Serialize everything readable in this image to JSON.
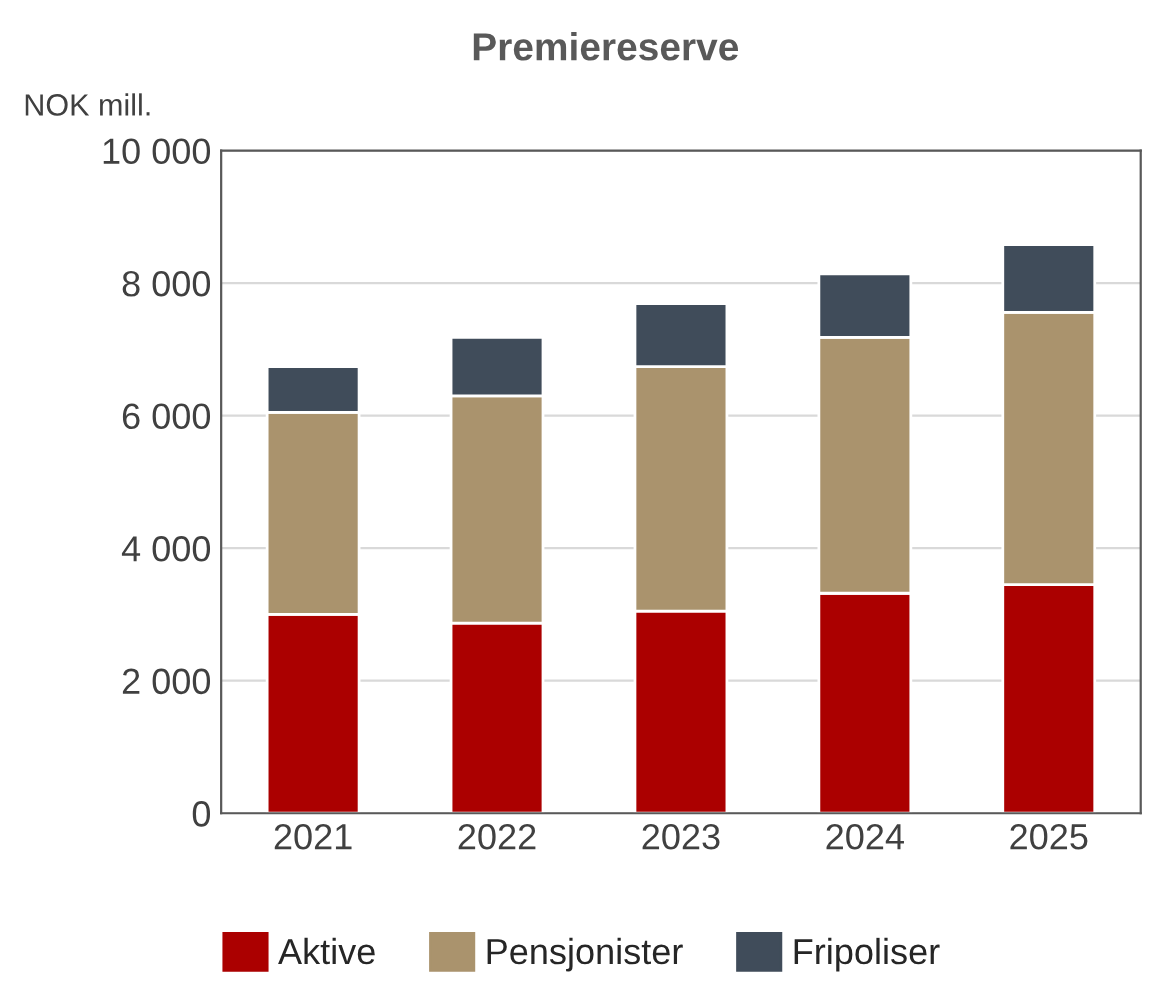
{
  "chart_data": {
    "type": "bar",
    "title": "Premiereserve",
    "ylabel": "NOK mill.",
    "stacked": true,
    "categories": [
      "2021",
      "2022",
      "2023",
      "2024",
      "2025"
    ],
    "series": [
      {
        "name": "Aktive",
        "color": "#ab0000",
        "values": [
          3000,
          2870,
          3050,
          3320,
          3450
        ]
      },
      {
        "name": "Pensjonister",
        "color": "#aa936d",
        "values": [
          3050,
          3430,
          3690,
          3860,
          4110
        ]
      },
      {
        "name": "Fripoliser",
        "color": "#404c5a",
        "values": [
          690,
          880,
          950,
          960,
          1020
        ]
      }
    ],
    "ylim": [
      0,
      10000
    ],
    "yticks": [
      {
        "value": 0,
        "label": "0"
      },
      {
        "value": 2000,
        "label": "2 000"
      },
      {
        "value": 4000,
        "label": "4 000"
      },
      {
        "value": 6000,
        "label": "6 000"
      },
      {
        "value": 8000,
        "label": "8 000"
      },
      {
        "value": 10000,
        "label": "10 000"
      }
    ],
    "grid": "y",
    "legend": "bottom"
  }
}
